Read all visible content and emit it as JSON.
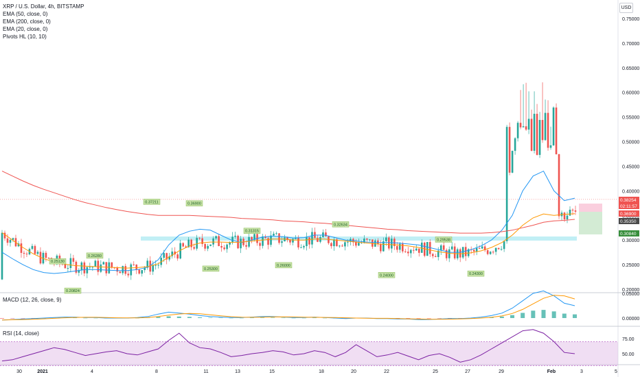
{
  "header": {
    "title": "XRP / U.S. Dollar, 4h, BITSTAMP",
    "indicators": [
      "EMA (50, close, 0)",
      "EMA (200, close, 0)",
      "EMA (20, close, 0)",
      "Pivots HL (10, 10)"
    ],
    "currency": "USD"
  },
  "panes": {
    "macd_label": "MACD (12, 26, close, 9)",
    "rsi_label": "RSI (14, close)"
  },
  "colors": {
    "up": "#26a69a",
    "down": "#ef5350",
    "ema50": "#2196f3",
    "ema200": "#ef5350",
    "ema20": "#ff9800",
    "rsi": "#7b1fa2",
    "rsi_band": "#e1bee7"
  },
  "chart_data": {
    "type": "line",
    "title": "XRP / U.S. Dollar, 4h, BITSTAMP",
    "y_ticks": [
      "0.75000",
      "0.70000",
      "0.65000",
      "0.60000",
      "0.55000",
      "0.50000",
      "0.45000",
      "0.40000",
      "0.35000",
      "0.30000",
      "0.25000",
      "0.20000"
    ],
    "ylim": [
      0.19,
      0.765
    ],
    "x_ticks": [
      "30",
      "2021",
      "4",
      "8",
      "11",
      "13",
      "15",
      "18",
      "20",
      "22",
      "25",
      "27",
      "29",
      "Feb",
      "3",
      "5"
    ],
    "price_labels": {
      "last": "0.38254",
      "countdown": "02:11:57",
      "stop": "0.36900",
      "ema20": "0.35350",
      "target": "0.30840"
    },
    "pivots": [
      {
        "label": "0.25130",
        "value": 0.2513
      },
      {
        "label": "0.20824",
        "value": 0.20824
      },
      {
        "label": "0.26280",
        "value": 0.2628
      },
      {
        "label": "0.37211",
        "value": 0.37211
      },
      {
        "label": "0.36900",
        "value": 0.369
      },
      {
        "label": "0.25300",
        "value": 0.253
      },
      {
        "label": "0.31315",
        "value": 0.31315
      },
      {
        "label": "0.26000",
        "value": 0.26
      },
      {
        "label": "0.32634",
        "value": 0.32634
      },
      {
        "label": "0.24000",
        "value": 0.24
      },
      {
        "label": "0.29538",
        "value": 0.29538
      },
      {
        "label": "0.24300",
        "value": 0.243
      }
    ],
    "series": [
      {
        "name": "EMA (50, close, 0)",
        "values": [
          0.275,
          0.262,
          0.25,
          0.24,
          0.234,
          0.232,
          0.234,
          0.237,
          0.24,
          0.24,
          0.239,
          0.238,
          0.238,
          0.24,
          0.245,
          0.26,
          0.29,
          0.31,
          0.318,
          0.322,
          0.32,
          0.31,
          0.3,
          0.295,
          0.3,
          0.306,
          0.308,
          0.307,
          0.304,
          0.305,
          0.31,
          0.31,
          0.305,
          0.3,
          0.298,
          0.296,
          0.295,
          0.295,
          0.294,
          0.292,
          0.29,
          0.285,
          0.28,
          0.275,
          0.275,
          0.28,
          0.288,
          0.3,
          0.32,
          0.35,
          0.4,
          0.43,
          0.44,
          0.4,
          0.38,
          0.385
        ]
      },
      {
        "name": "EMA (200, close, 0)",
        "values": [
          0.44,
          0.43,
          0.42,
          0.411,
          0.403,
          0.396,
          0.389,
          0.382,
          0.376,
          0.371,
          0.366,
          0.362,
          0.358,
          0.355,
          0.352,
          0.35,
          0.35,
          0.35,
          0.35,
          0.349,
          0.348,
          0.347,
          0.346,
          0.344,
          0.343,
          0.342,
          0.341,
          0.339,
          0.338,
          0.337,
          0.335,
          0.334,
          0.332,
          0.33,
          0.328,
          0.326,
          0.324,
          0.322,
          0.321,
          0.319,
          0.318,
          0.317,
          0.316,
          0.315,
          0.314,
          0.314,
          0.314,
          0.315,
          0.317,
          0.32,
          0.325,
          0.33,
          0.336,
          0.339,
          0.34,
          0.342
        ]
      },
      {
        "name": "EMA (20, close, 0)",
        "values": [
          0.315,
          0.3,
          0.285,
          0.272,
          0.262,
          0.256,
          0.251,
          0.248,
          0.247,
          0.246,
          0.245,
          0.244,
          0.243,
          0.244,
          0.246,
          0.252,
          0.265,
          0.278,
          0.288,
          0.294,
          0.296,
          0.296,
          0.295,
          0.296,
          0.298,
          0.3,
          0.302,
          0.302,
          0.3,
          0.3,
          0.302,
          0.302,
          0.3,
          0.298,
          0.296,
          0.294,
          0.292,
          0.291,
          0.29,
          0.288,
          0.285,
          0.28,
          0.276,
          0.273,
          0.272,
          0.274,
          0.278,
          0.285,
          0.295,
          0.31,
          0.33,
          0.345,
          0.353,
          0.35,
          0.352,
          0.3535
        ]
      },
      {
        "name": "RSI (14, close)",
        "values": [
          38,
          40,
          45,
          50,
          55,
          60,
          57,
          52,
          47,
          50,
          53,
          55,
          50,
          48,
          53,
          58,
          72,
          84,
          68,
          60,
          58,
          52,
          45,
          47,
          50,
          52,
          55,
          53,
          48,
          50,
          55,
          52,
          45,
          52,
          65,
          55,
          45,
          48,
          52,
          46,
          40,
          47,
          50,
          44,
          36,
          40,
          48,
          58,
          68,
          78,
          88,
          90,
          84,
          70,
          52,
          50
        ]
      },
      {
        "name": "MACD (12, 26, close, 9)",
        "values": [
          -0.004,
          -0.003,
          -0.002,
          -0.001,
          0.0,
          0.001,
          0.002,
          0.002,
          0.001,
          0.001,
          0.0,
          0.0,
          0.0,
          0.001,
          0.003,
          0.008,
          0.012,
          0.01,
          0.008,
          0.005,
          0.003,
          0.002,
          0.001,
          0.001,
          0.002,
          0.003,
          0.003,
          0.002,
          0.001,
          0.001,
          0.002,
          0.001,
          0.0,
          -0.001,
          0.0,
          0.0,
          -0.001,
          -0.001,
          -0.002,
          -0.002,
          -0.003,
          -0.003,
          -0.002,
          -0.001,
          -0.001,
          0.0,
          0.002,
          0.005,
          0.01,
          0.02,
          0.035,
          0.05,
          0.055,
          0.045,
          0.03,
          0.025
        ]
      }
    ],
    "macd_ticks": [
      "0.05000",
      "0.00000"
    ],
    "rsi_ticks": [
      "75.00",
      "50.00"
    ]
  }
}
